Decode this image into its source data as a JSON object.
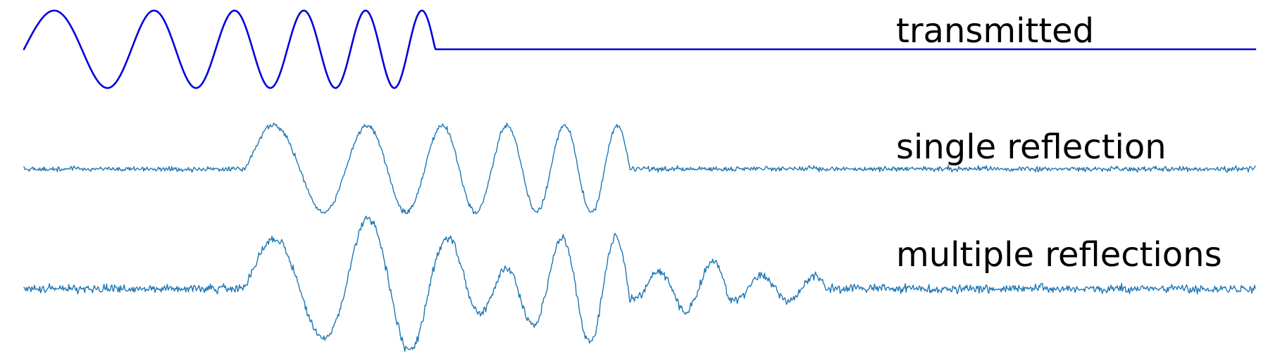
{
  "chart_data": {
    "type": "line",
    "grid": false,
    "axes_visible": false,
    "series": [
      {
        "name": "transmitted",
        "color": "#0000e0",
        "noise": 0,
        "pulse": {
          "end": 0.334,
          "cycles": 5.5,
          "chirp": 2.4,
          "amplitude": 1.0
        },
        "echoes": []
      },
      {
        "name": "single reflection",
        "color": "#1f77b4",
        "noise": 0.09,
        "pulse": {
          "start": 0.18,
          "end": 0.492,
          "cycles": 5.5,
          "chirp": 2.4,
          "amplitude": 1.0
        },
        "echoes": []
      },
      {
        "name": "multiple reflections",
        "color": "#1f77b4",
        "noise": 0.13,
        "pulse": {
          "start": 0.18,
          "end": 0.492,
          "cycles": 5.5,
          "chirp": 2.4,
          "amplitude": 1.0
        },
        "echoes": [
          {
            "delay": 0.08,
            "amplitude": 0.45
          },
          {
            "delay": 0.16,
            "amplitude": 0.25
          }
        ]
      }
    ],
    "ylim": [
      -1.15,
      1.15
    ]
  }
}
